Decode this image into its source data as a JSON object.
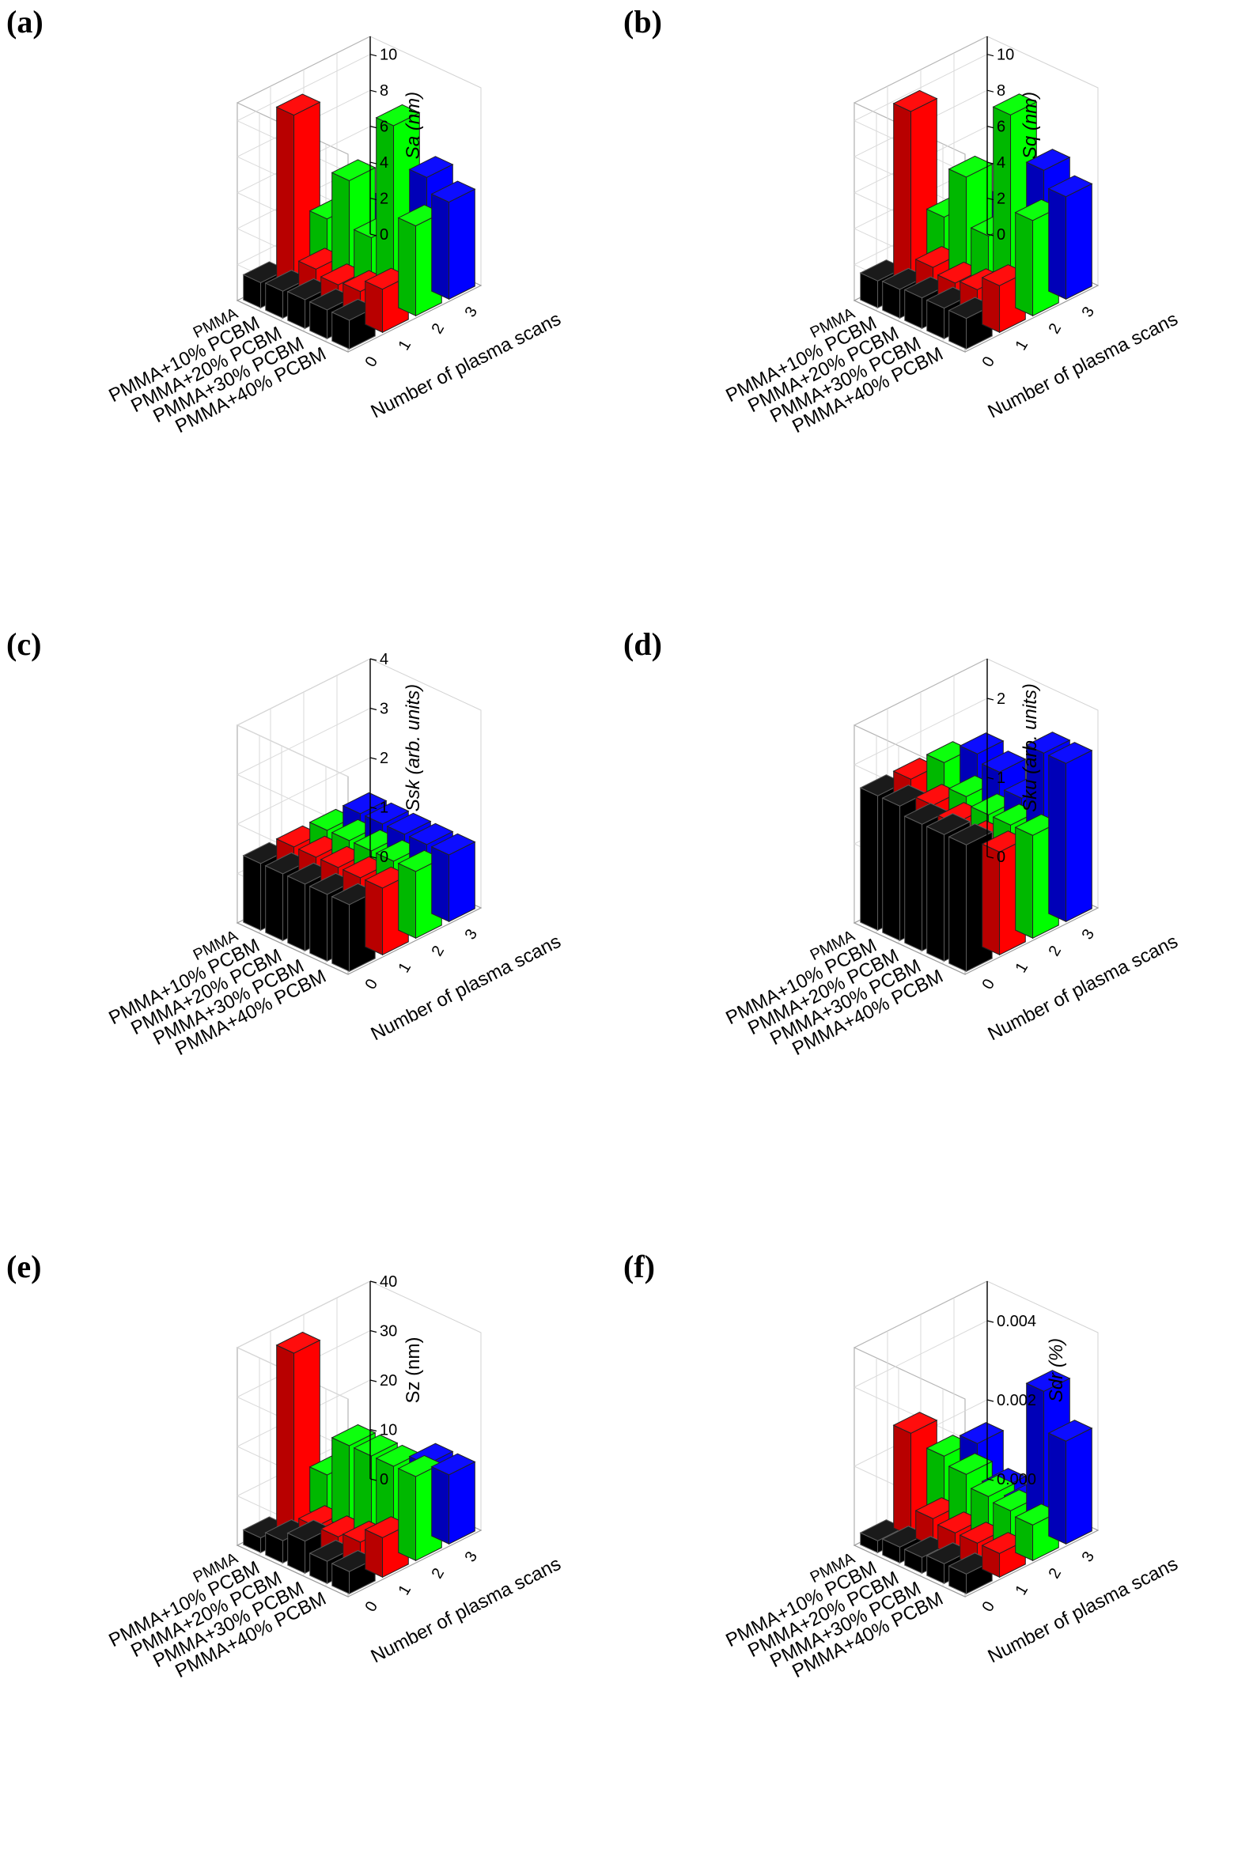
{
  "chart_data": [
    {
      "panel": "(a)",
      "type": "bar3d",
      "categories": [
        "PMMA",
        "PMMA+10% PCBM",
        "PMMA+20% PCBM",
        "PMMA+30% PCBM",
        "PMMA+40% PCBM"
      ],
      "x": [
        "0",
        "1",
        "2",
        "3"
      ],
      "xlabel": "Number of plasma scans",
      "zlabel": "Sa (nm)",
      "zlim": [
        0,
        11
      ],
      "zticks": [
        "0",
        "2",
        "4",
        "6",
        "8",
        "10"
      ],
      "zticks_v": [
        0,
        2,
        4,
        6,
        8,
        10
      ],
      "series": [
        {
          "name": "0",
          "color": "#000000",
          "values": [
            1.4,
            1.5,
            1.6,
            1.6,
            1.6
          ]
        },
        {
          "name": "1",
          "color": "#ff0000",
          "values": [
            9.8,
            1.8,
            1.5,
            1.7,
            2.4
          ]
        },
        {
          "name": "2",
          "color": "#00ff00",
          "values": [
            3.1,
            5.8,
            3.2,
            10.0,
            5.0
          ]
        },
        {
          "name": "3",
          "color": "#0000ff",
          "values": [
            2.6,
            2.0,
            1.5,
            6.2,
            5.4
          ]
        }
      ]
    },
    {
      "panel": "(b)",
      "type": "bar3d",
      "categories": [
        "PMMA",
        "PMMA+10% PCBM",
        "PMMA+20% PCBM",
        "PMMA+30% PCBM",
        "PMMA+40% PCBM"
      ],
      "x": [
        "0",
        "1",
        "2",
        "3"
      ],
      "xlabel": "Number of plasma scans",
      "zlabel": "Sq (nm)",
      "zlim": [
        0,
        11
      ],
      "zticks": [
        "0",
        "2",
        "4",
        "6",
        "8",
        "10"
      ],
      "zticks_v": [
        0,
        2,
        4,
        6,
        8,
        10
      ],
      "series": [
        {
          "name": "0",
          "color": "#000000",
          "values": [
            1.5,
            1.6,
            1.7,
            1.7,
            1.7
          ]
        },
        {
          "name": "1",
          "color": "#ff0000",
          "values": [
            10.0,
            1.9,
            1.6,
            1.8,
            2.6
          ]
        },
        {
          "name": "2",
          "color": "#00ff00",
          "values": [
            3.2,
            6.0,
            3.3,
            10.6,
            5.3
          ]
        },
        {
          "name": "3",
          "color": "#0000ff",
          "values": [
            2.7,
            2.1,
            1.6,
            6.6,
            5.7
          ]
        }
      ]
    },
    {
      "panel": "(c)",
      "type": "bar3d",
      "categories": [
        "PMMA",
        "PMMA+10% PCBM",
        "PMMA+20% PCBM",
        "PMMA+30% PCBM",
        "PMMA+40% PCBM"
      ],
      "x": [
        "0",
        "1",
        "2",
        "3"
      ],
      "xlabel": "Number of plasma scans",
      "zlabel": "Ssk (arb. units)",
      "zlim": [
        0,
        4
      ],
      "zticks": [
        "0",
        "1",
        "2",
        "3",
        "4"
      ],
      "zticks_v": [
        0,
        1,
        2,
        3,
        4
      ],
      "series": [
        {
          "name": "0",
          "color": "#000000",
          "values": [
            1.35,
            1.35,
            1.35,
            1.35,
            1.35
          ]
        },
        {
          "name": "1",
          "color": "#ff0000",
          "values": [
            1.35,
            1.35,
            1.35,
            1.35,
            1.35
          ]
        },
        {
          "name": "2",
          "color": "#00ff00",
          "values": [
            1.35,
            1.35,
            1.35,
            1.35,
            1.35
          ]
        },
        {
          "name": "3",
          "color": "#0000ff",
          "values": [
            1.35,
            1.35,
            1.35,
            1.35,
            1.35
          ]
        }
      ]
    },
    {
      "panel": "(d)",
      "type": "bar3d",
      "categories": [
        "PMMA",
        "PMMA+10% PCBM",
        "PMMA+20% PCBM",
        "PMMA+30% PCBM",
        "PMMA+40% PCBM"
      ],
      "x": [
        "0",
        "1",
        "2",
        "3"
      ],
      "xlabel": "Number of plasma scans",
      "zlabel": "Sku (arb. units)",
      "zlim": [
        0,
        2.5
      ],
      "zticks": [
        "0",
        "1",
        "2"
      ],
      "zticks_v": [
        0,
        1,
        2
      ],
      "series": [
        {
          "name": "0",
          "color": "#000000",
          "values": [
            1.7,
            1.7,
            1.6,
            1.6,
            1.6
          ]
        },
        {
          "name": "1",
          "color": "#ff0000",
          "values": [
            1.7,
            1.5,
            1.4,
            1.3,
            1.3
          ]
        },
        {
          "name": "2",
          "color": "#00ff00",
          "values": [
            1.7,
            1.4,
            1.3,
            1.3,
            1.3
          ]
        },
        {
          "name": "3",
          "color": "#0000ff",
          "values": [
            1.6,
            1.5,
            1.3,
            2.0,
            2.0
          ]
        }
      ]
    },
    {
      "panel": "(e)",
      "type": "bar3d",
      "categories": [
        "PMMA",
        "PMMA+10% PCBM",
        "PMMA+20% PCBM",
        "PMMA+30% PCBM",
        "PMMA+40% PCBM"
      ],
      "x": [
        "0",
        "1",
        "2",
        "3"
      ],
      "xlabel": "Number of plasma scans",
      "zlabel": "Sz (nm)",
      "zlim": [
        0,
        40
      ],
      "zticks": [
        "0",
        "10",
        "20",
        "30",
        "40"
      ],
      "zticks_v": [
        0,
        10,
        20,
        30,
        40
      ],
      "series": [
        {
          "name": "0",
          "color": "#000000",
          "values": [
            3.0,
            4.5,
            6.5,
            4.5,
            4.5
          ]
        },
        {
          "name": "1",
          "color": "#ff0000",
          "values": [
            37,
            4.0,
            4.0,
            5.0,
            8.0
          ]
        },
        {
          "name": "2",
          "color": "#00ff00",
          "values": [
            9.0,
            17,
            17,
            17,
            17
          ]
        },
        {
          "name": "3",
          "color": "#0000ff",
          "values": [
            8.0,
            9.0,
            9.0,
            14,
            14
          ]
        }
      ]
    },
    {
      "panel": "(f)",
      "type": "bar3d",
      "categories": [
        "PMMA",
        "PMMA+10% PCBM",
        "PMMA+20% PCBM",
        "PMMA+30% PCBM",
        "PMMA+40% PCBM"
      ],
      "x": [
        "0",
        "1",
        "2",
        "3"
      ],
      "xlabel": "Number of plasma scans",
      "zlabel": "Sdr (%)",
      "zlim": [
        0,
        0.005
      ],
      "zticks": [
        "0.000",
        "0.002",
        "0.004"
      ],
      "zticks_v": [
        0,
        0.002,
        0.004
      ],
      "series": [
        {
          "name": "0",
          "color": "#000000",
          "values": [
            0.0003,
            0.0004,
            0.0004,
            0.0005,
            0.0005
          ]
        },
        {
          "name": "1",
          "color": "#ff0000",
          "values": [
            0.0026,
            0.0007,
            0.0006,
            0.0006,
            0.0006
          ]
        },
        {
          "name": "2",
          "color": "#00ff00",
          "values": [
            0.0016,
            0.0014,
            0.0011,
            0.001,
            0.0009
          ]
        },
        {
          "name": "3",
          "color": "#0000ff",
          "values": [
            0.0015,
            0.0006,
            0.0005,
            0.0036,
            0.0026
          ]
        }
      ]
    }
  ]
}
